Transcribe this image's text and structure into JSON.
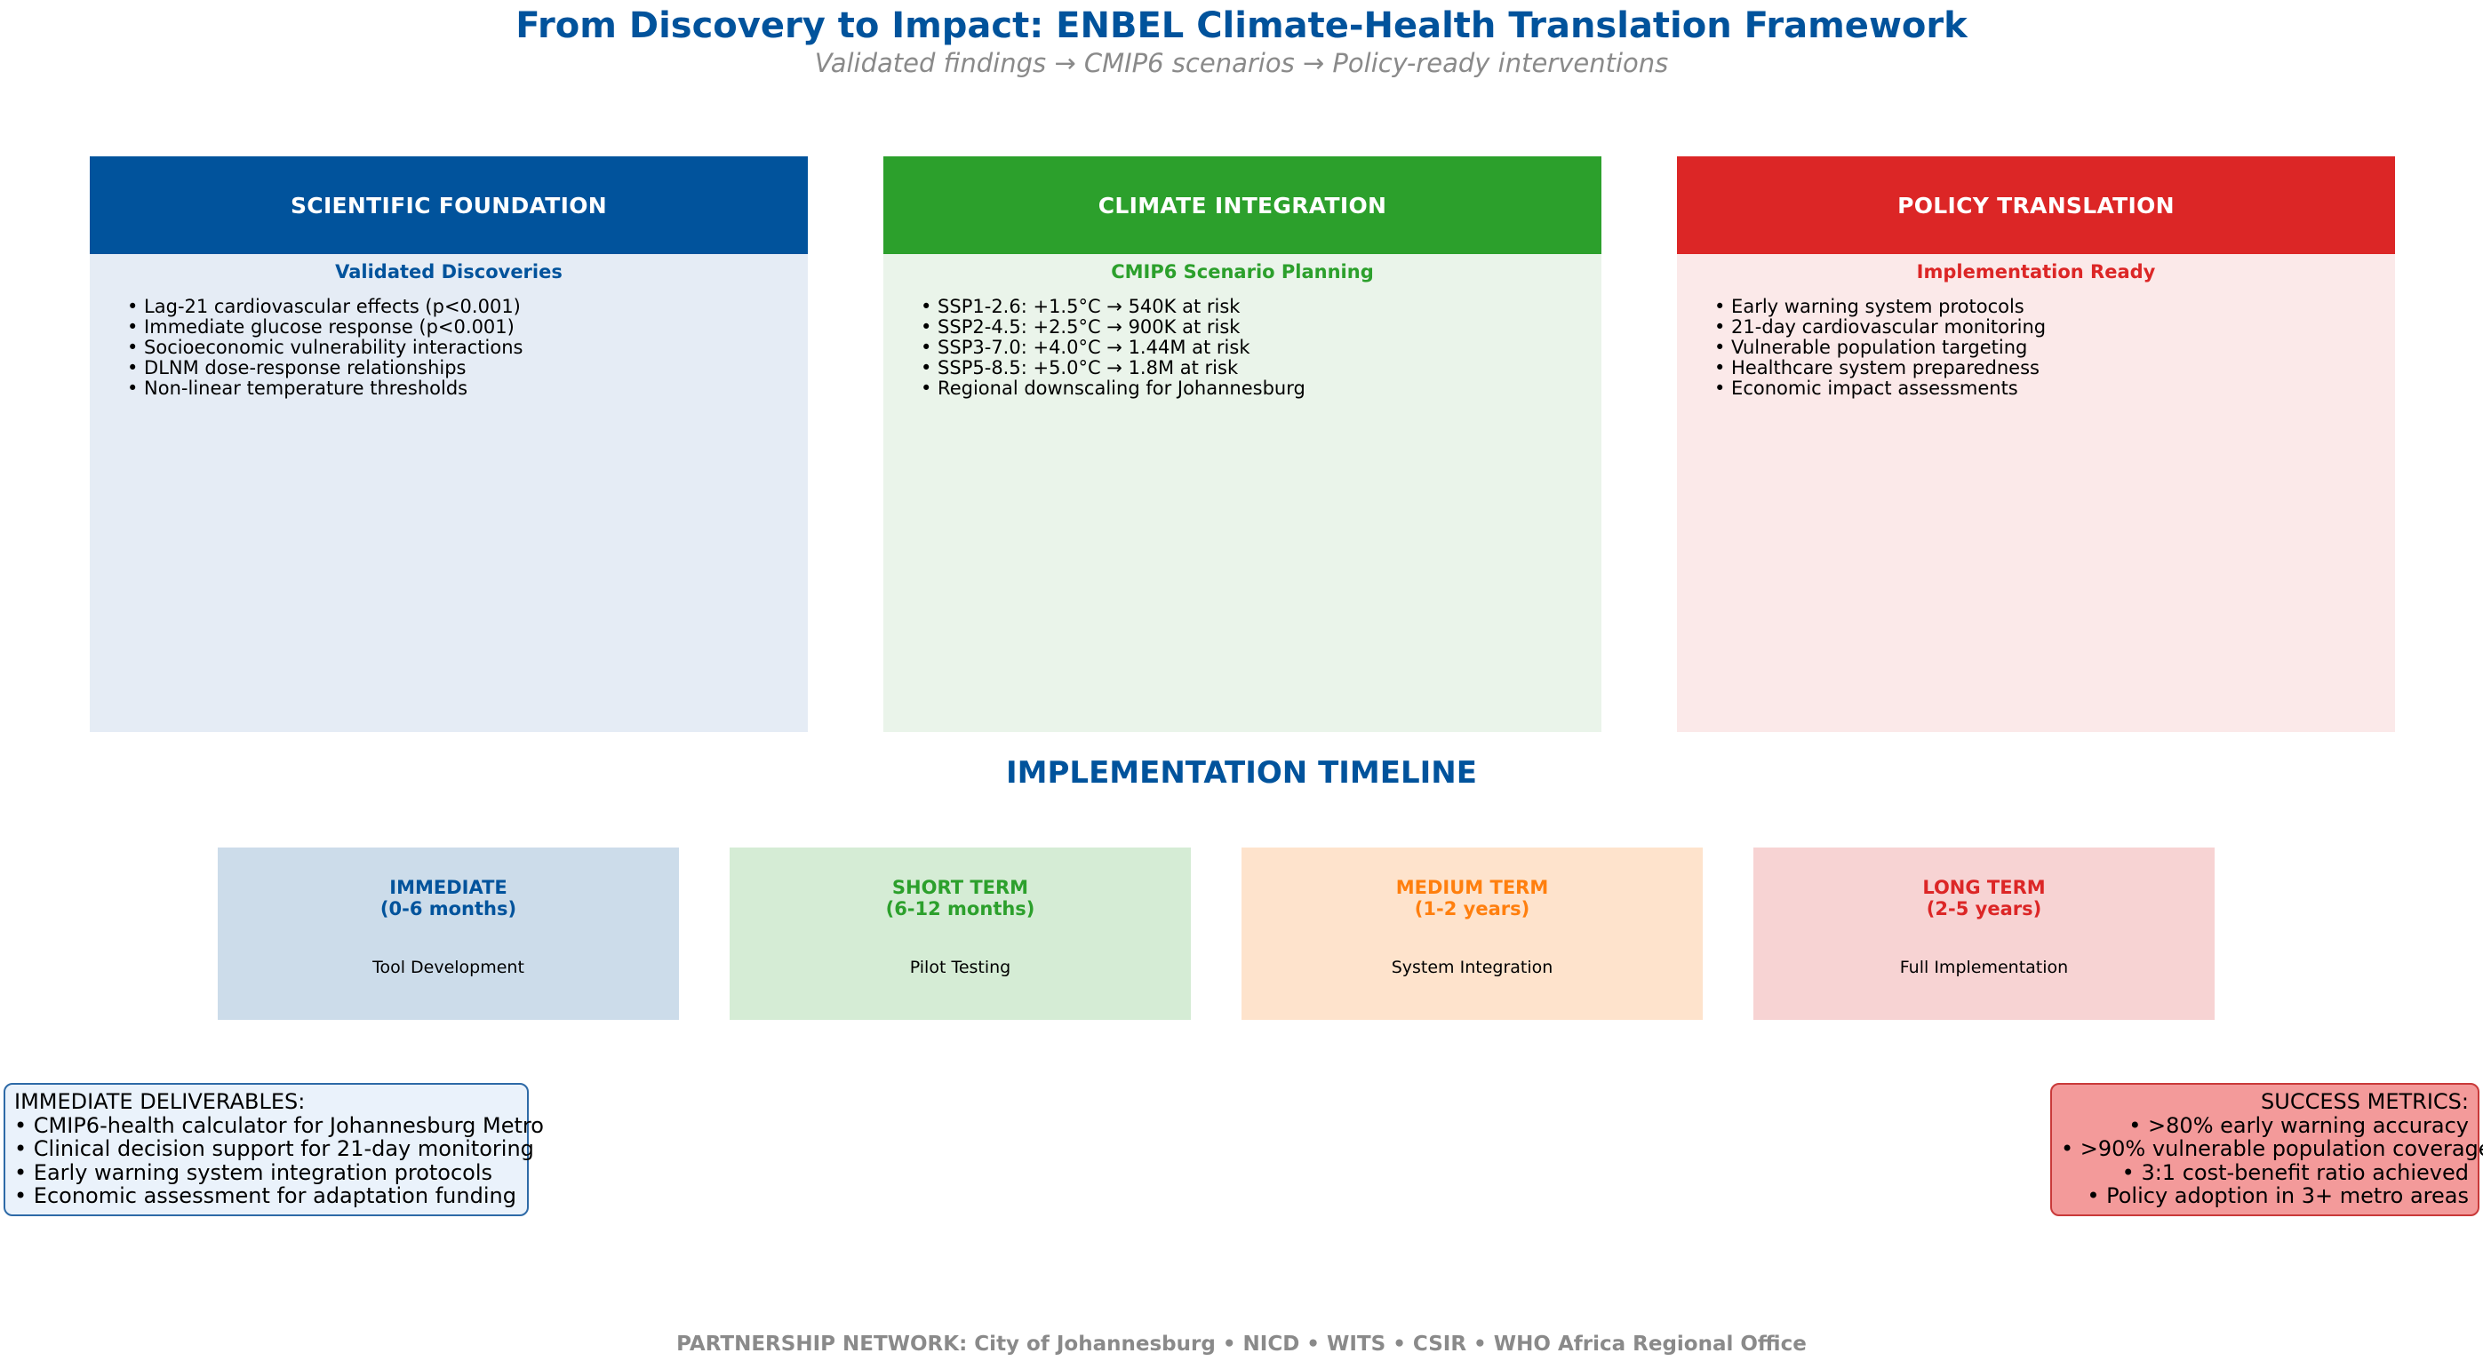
{
  "header": {
    "title": "From Discovery to Impact: ENBEL Climate-Health Translation Framework",
    "subtitle": "Validated findings → CMIP6 scenarios → Policy-ready interventions"
  },
  "columns": [
    {
      "title": "SCIENTIFIC FOUNDATION",
      "subtitle": "Validated Discoveries",
      "color": "#01539c",
      "items": [
        "• Lag-21 cardiovascular effects (p<0.001)",
        "• Immediate glucose response (p<0.001)",
        "• Socioeconomic vulnerability interactions",
        "• DLNM dose-response relationships",
        "• Non-linear temperature thresholds"
      ]
    },
    {
      "title": "CLIMATE INTEGRATION",
      "subtitle": "CMIP6 Scenario Planning",
      "color": "#2ca02c",
      "items": [
        "• SSP1-2.6: +1.5°C → 540K at risk",
        "• SSP2-4.5: +2.5°C → 900K at risk",
        "• SSP3-7.0: +4.0°C → 1.44M at risk",
        "• SSP5-8.5: +5.0°C → 1.8M at risk",
        "• Regional downscaling for Johannesburg"
      ]
    },
    {
      "title": "POLICY TRANSLATION",
      "subtitle": "Implementation Ready",
      "color": "#dc2626",
      "items": [
        "• Early warning system protocols",
        "• 21-day cardiovascular monitoring",
        "• Vulnerable population targeting",
        "• Healthcare system preparedness",
        "• Economic impact assessments"
      ]
    }
  ],
  "timeline": {
    "title": "IMPLEMENTATION TIMELINE",
    "phases": [
      {
        "label": "IMMEDIATE",
        "period": "(0-6 months)",
        "description": "Tool Development",
        "color": "#01539c"
      },
      {
        "label": "SHORT TERM",
        "period": "(6-12 months)",
        "description": "Pilot Testing",
        "color": "#2ca02c"
      },
      {
        "label": "MEDIUM TERM",
        "period": "(1-2 years)",
        "description": "System Integration",
        "color": "#ff7f0e"
      },
      {
        "label": "LONG TERM",
        "period": "(2-5 years)",
        "description": "Full Implementation",
        "color": "#dc2626"
      }
    ]
  },
  "deliverables": {
    "title": "IMMEDIATE DELIVERABLES:",
    "items": [
      "• CMIP6-health calculator for Johannesburg Metro",
      "• Clinical decision support for 21-day monitoring",
      "• Early warning system integration protocols",
      "• Economic assessment for adaptation funding"
    ]
  },
  "metrics": {
    "title": "SUCCESS METRICS:",
    "items": [
      "• >80% early warning accuracy",
      "• >90% vulnerable population coverage",
      "• 3:1 cost-benefit ratio achieved",
      "• Policy adoption in 3+ metro areas"
    ]
  },
  "footer": {
    "partners": "PARTNERSHIP NETWORK: City of Johannesburg • NICD • WITS • CSIR • WHO Africa Regional Office"
  }
}
